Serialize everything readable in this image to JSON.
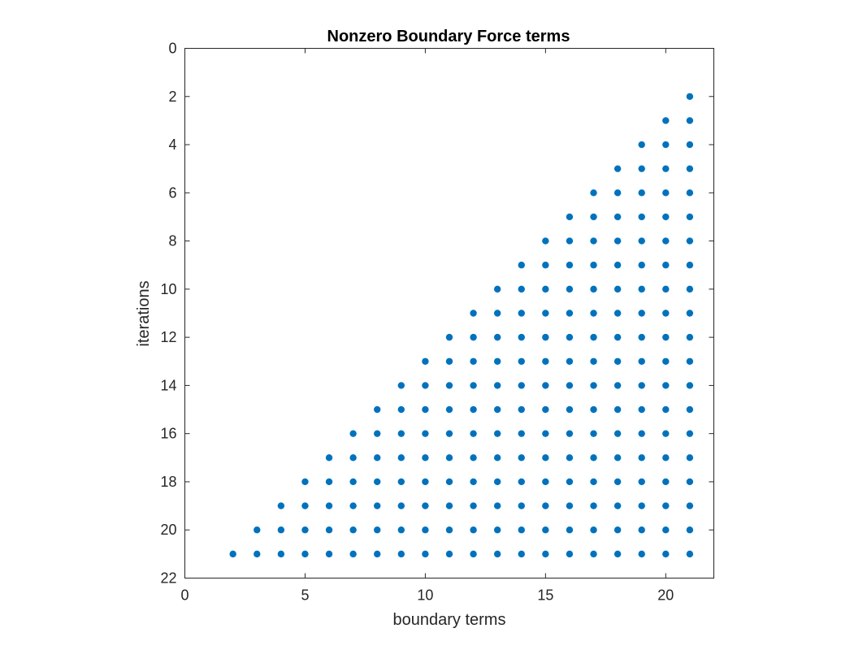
{
  "chart_data": {
    "type": "scatter",
    "title": "Nonzero Boundary Force terms",
    "xlabel": "boundary terms",
    "ylabel": "iterations",
    "xlim": [
      0,
      22
    ],
    "ylim": [
      0,
      22
    ],
    "y_reversed": true,
    "x_ticks": [
      0,
      5,
      10,
      15,
      20
    ],
    "y_ticks": [
      0,
      2,
      4,
      6,
      8,
      10,
      12,
      14,
      16,
      18,
      20,
      22
    ],
    "grid": false,
    "legend": "none",
    "marker": "filled-circle",
    "marker_color": "#0072BD",
    "series": [
      {
        "description": "nonzero entry at (boundary term, iteration) for every iteration i from 2 to 21 and every boundary term j with 23 - i <= j <= 21",
        "points": [
          [
            21,
            2
          ],
          [
            20,
            3
          ],
          [
            21,
            3
          ],
          [
            19,
            4
          ],
          [
            20,
            4
          ],
          [
            21,
            4
          ],
          [
            18,
            5
          ],
          [
            19,
            5
          ],
          [
            20,
            5
          ],
          [
            21,
            5
          ],
          [
            17,
            6
          ],
          [
            18,
            6
          ],
          [
            19,
            6
          ],
          [
            20,
            6
          ],
          [
            21,
            6
          ],
          [
            16,
            7
          ],
          [
            17,
            7
          ],
          [
            18,
            7
          ],
          [
            19,
            7
          ],
          [
            20,
            7
          ],
          [
            21,
            7
          ],
          [
            15,
            8
          ],
          [
            16,
            8
          ],
          [
            17,
            8
          ],
          [
            18,
            8
          ],
          [
            19,
            8
          ],
          [
            20,
            8
          ],
          [
            21,
            8
          ],
          [
            14,
            9
          ],
          [
            15,
            9
          ],
          [
            16,
            9
          ],
          [
            17,
            9
          ],
          [
            18,
            9
          ],
          [
            19,
            9
          ],
          [
            20,
            9
          ],
          [
            21,
            9
          ],
          [
            13,
            10
          ],
          [
            14,
            10
          ],
          [
            15,
            10
          ],
          [
            16,
            10
          ],
          [
            17,
            10
          ],
          [
            18,
            10
          ],
          [
            19,
            10
          ],
          [
            20,
            10
          ],
          [
            21,
            10
          ],
          [
            12,
            11
          ],
          [
            13,
            11
          ],
          [
            14,
            11
          ],
          [
            15,
            11
          ],
          [
            16,
            11
          ],
          [
            17,
            11
          ],
          [
            18,
            11
          ],
          [
            19,
            11
          ],
          [
            20,
            11
          ],
          [
            21,
            11
          ],
          [
            11,
            12
          ],
          [
            12,
            12
          ],
          [
            13,
            12
          ],
          [
            14,
            12
          ],
          [
            15,
            12
          ],
          [
            16,
            12
          ],
          [
            17,
            12
          ],
          [
            18,
            12
          ],
          [
            19,
            12
          ],
          [
            20,
            12
          ],
          [
            21,
            12
          ],
          [
            10,
            13
          ],
          [
            11,
            13
          ],
          [
            12,
            13
          ],
          [
            13,
            13
          ],
          [
            14,
            13
          ],
          [
            15,
            13
          ],
          [
            16,
            13
          ],
          [
            17,
            13
          ],
          [
            18,
            13
          ],
          [
            19,
            13
          ],
          [
            20,
            13
          ],
          [
            21,
            13
          ],
          [
            9,
            14
          ],
          [
            10,
            14
          ],
          [
            11,
            14
          ],
          [
            12,
            14
          ],
          [
            13,
            14
          ],
          [
            14,
            14
          ],
          [
            15,
            14
          ],
          [
            16,
            14
          ],
          [
            17,
            14
          ],
          [
            18,
            14
          ],
          [
            19,
            14
          ],
          [
            20,
            14
          ],
          [
            21,
            14
          ],
          [
            8,
            15
          ],
          [
            9,
            15
          ],
          [
            10,
            15
          ],
          [
            11,
            15
          ],
          [
            12,
            15
          ],
          [
            13,
            15
          ],
          [
            14,
            15
          ],
          [
            15,
            15
          ],
          [
            16,
            15
          ],
          [
            17,
            15
          ],
          [
            18,
            15
          ],
          [
            19,
            15
          ],
          [
            20,
            15
          ],
          [
            21,
            15
          ],
          [
            7,
            16
          ],
          [
            8,
            16
          ],
          [
            9,
            16
          ],
          [
            10,
            16
          ],
          [
            11,
            16
          ],
          [
            12,
            16
          ],
          [
            13,
            16
          ],
          [
            14,
            16
          ],
          [
            15,
            16
          ],
          [
            16,
            16
          ],
          [
            17,
            16
          ],
          [
            18,
            16
          ],
          [
            19,
            16
          ],
          [
            20,
            16
          ],
          [
            21,
            16
          ],
          [
            6,
            17
          ],
          [
            7,
            17
          ],
          [
            8,
            17
          ],
          [
            9,
            17
          ],
          [
            10,
            17
          ],
          [
            11,
            17
          ],
          [
            12,
            17
          ],
          [
            13,
            17
          ],
          [
            14,
            17
          ],
          [
            15,
            17
          ],
          [
            16,
            17
          ],
          [
            17,
            17
          ],
          [
            18,
            17
          ],
          [
            19,
            17
          ],
          [
            20,
            17
          ],
          [
            21,
            17
          ],
          [
            5,
            18
          ],
          [
            6,
            18
          ],
          [
            7,
            18
          ],
          [
            8,
            18
          ],
          [
            9,
            18
          ],
          [
            10,
            18
          ],
          [
            11,
            18
          ],
          [
            12,
            18
          ],
          [
            13,
            18
          ],
          [
            14,
            18
          ],
          [
            15,
            18
          ],
          [
            16,
            18
          ],
          [
            17,
            18
          ],
          [
            18,
            18
          ],
          [
            19,
            18
          ],
          [
            20,
            18
          ],
          [
            21,
            18
          ],
          [
            4,
            19
          ],
          [
            5,
            19
          ],
          [
            6,
            19
          ],
          [
            7,
            19
          ],
          [
            8,
            19
          ],
          [
            9,
            19
          ],
          [
            10,
            19
          ],
          [
            11,
            19
          ],
          [
            12,
            19
          ],
          [
            13,
            19
          ],
          [
            14,
            19
          ],
          [
            15,
            19
          ],
          [
            16,
            19
          ],
          [
            17,
            19
          ],
          [
            18,
            19
          ],
          [
            19,
            19
          ],
          [
            20,
            19
          ],
          [
            21,
            19
          ],
          [
            3,
            20
          ],
          [
            4,
            20
          ],
          [
            5,
            20
          ],
          [
            6,
            20
          ],
          [
            7,
            20
          ],
          [
            8,
            20
          ],
          [
            9,
            20
          ],
          [
            10,
            20
          ],
          [
            11,
            20
          ],
          [
            12,
            20
          ],
          [
            13,
            20
          ],
          [
            14,
            20
          ],
          [
            15,
            20
          ],
          [
            16,
            20
          ],
          [
            17,
            20
          ],
          [
            18,
            20
          ],
          [
            19,
            20
          ],
          [
            20,
            20
          ],
          [
            21,
            20
          ],
          [
            2,
            21
          ],
          [
            3,
            21
          ],
          [
            4,
            21
          ],
          [
            5,
            21
          ],
          [
            6,
            21
          ],
          [
            7,
            21
          ],
          [
            8,
            21
          ],
          [
            9,
            21
          ],
          [
            10,
            21
          ],
          [
            11,
            21
          ],
          [
            12,
            21
          ],
          [
            13,
            21
          ],
          [
            14,
            21
          ],
          [
            15,
            21
          ],
          [
            16,
            21
          ],
          [
            17,
            21
          ],
          [
            18,
            21
          ],
          [
            19,
            21
          ],
          [
            20,
            21
          ],
          [
            21,
            21
          ]
        ]
      }
    ]
  }
}
